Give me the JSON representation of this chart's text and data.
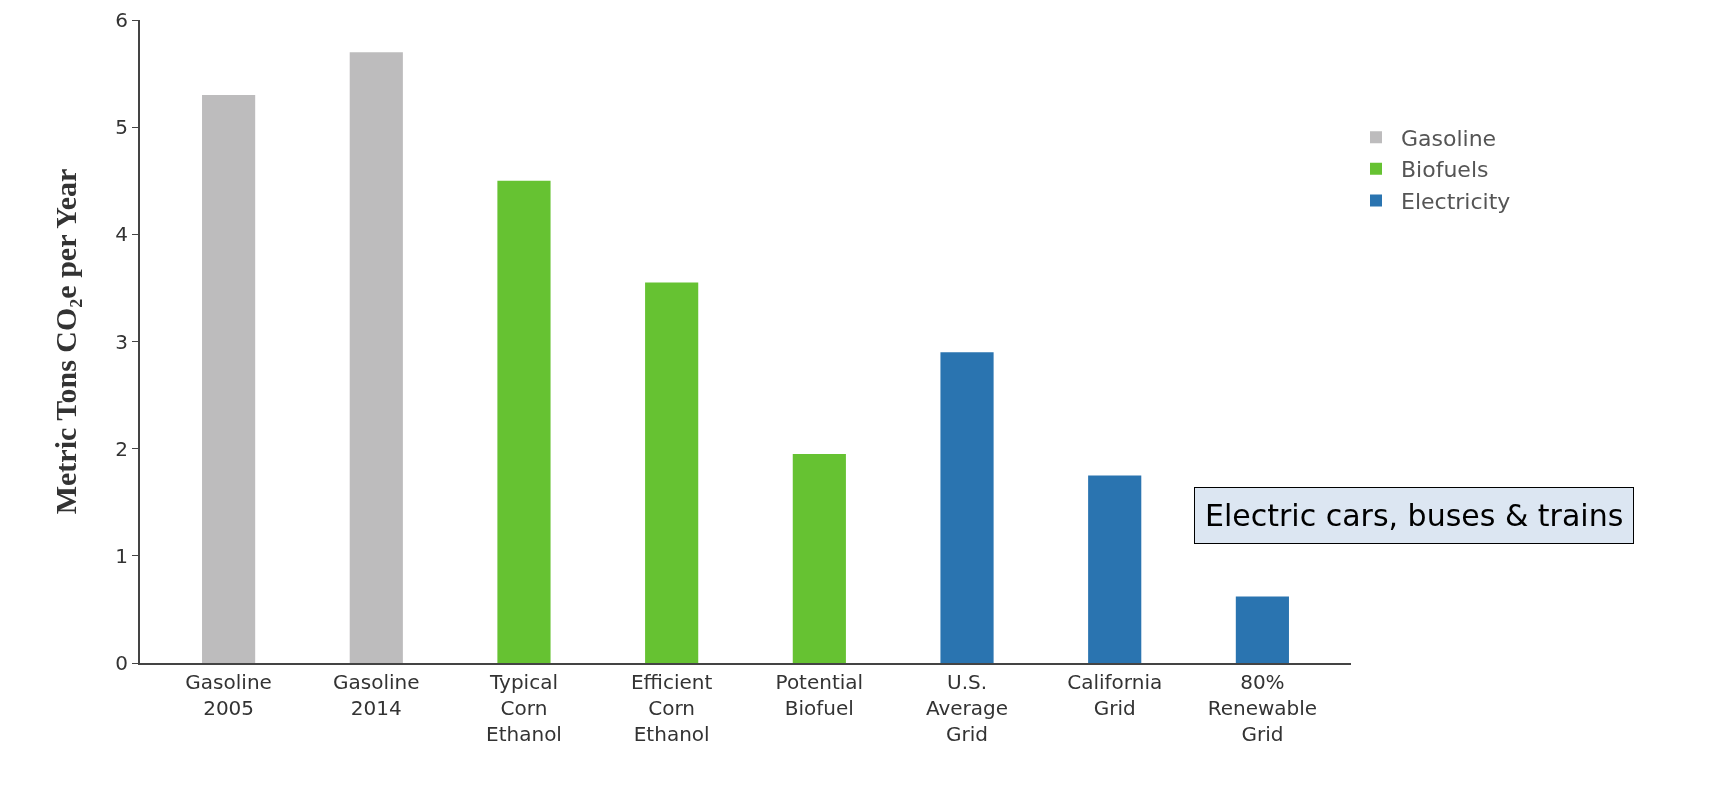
{
  "chart_data": {
    "type": "bar",
    "ylabel": "Metric Tons CO₂e per Year",
    "categories": [
      "Gasoline 2005",
      "Gasoline 2014",
      "Typical Corn Ethanol",
      "Efficient Corn Ethanol",
      "Potential Biofuel",
      "U.S. Average Grid",
      "California Grid",
      "80% Renewable Grid"
    ],
    "series": [
      {
        "name": "Gasoline",
        "color": "#bdbcbd",
        "values": [
          5.3,
          5.7,
          null,
          null,
          null,
          null,
          null,
          null
        ]
      },
      {
        "name": "Biofuels",
        "color": "#66c232",
        "values": [
          null,
          null,
          4.5,
          3.55,
          1.95,
          null,
          null,
          null
        ]
      },
      {
        "name": "Electricity",
        "color": "#2a74b0",
        "values": [
          null,
          null,
          null,
          null,
          null,
          2.9,
          1.75,
          0.62
        ]
      }
    ],
    "ylim": [
      0,
      6
    ],
    "yticks": [
      0,
      1,
      2,
      3,
      4,
      5,
      6
    ],
    "grid": false,
    "legend": "right",
    "annotations": [
      "Electric cars, buses & trains"
    ]
  }
}
